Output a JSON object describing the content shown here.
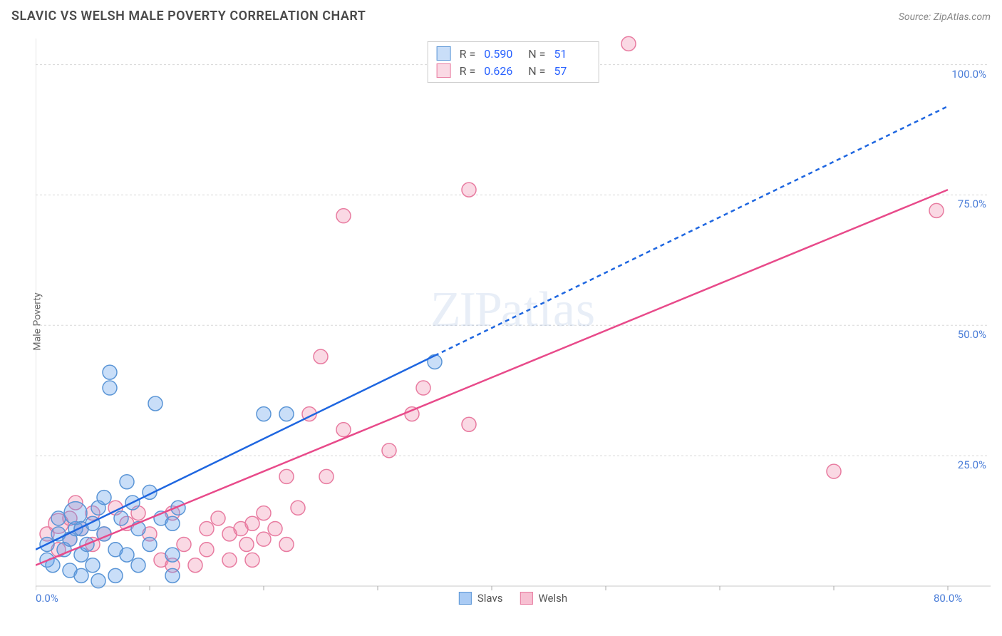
{
  "title": "SLAVIC VS WELSH MALE POVERTY CORRELATION CHART",
  "source_label": "Source: ZipAtlas.com",
  "watermark": {
    "bold": "ZIP",
    "light": "atlas"
  },
  "y_axis_label": "Male Poverty",
  "chart": {
    "type": "scatter",
    "background_color": "#ffffff",
    "grid_color": "#d8d8d8",
    "axis_color": "#c8c8c8",
    "tick_color": "#aaaaaa",
    "label_text_color": "#4a7dd8",
    "x_domain": [
      0,
      80
    ],
    "y_domain": [
      0,
      105
    ],
    "x_ticks": [
      0,
      10,
      20,
      30,
      40,
      50,
      60,
      70,
      80
    ],
    "y_gridlines": [
      25,
      50,
      75,
      100
    ],
    "x_tick_labels": {
      "0": "0.0%",
      "80": "80.0%"
    },
    "y_tick_labels": {
      "25": "25.0%",
      "50": "50.0%",
      "75": "75.0%",
      "100": "100.0%"
    },
    "series": [
      {
        "name": "Slavs",
        "marker_fill": "rgba(100,160,235,0.35)",
        "marker_stroke": "#5a95d6",
        "marker_radius": 10,
        "line_color": "#1e66e0",
        "line_width": 2.5,
        "dash_after_x": 35,
        "dash_pattern": "6,5",
        "r": "0.590",
        "n": "51",
        "trend": {
          "x1": 0,
          "y1": 7,
          "x2": 80,
          "y2": 92
        },
        "data": [
          {
            "x": 1,
            "y": 5
          },
          {
            "x": 1,
            "y": 8
          },
          {
            "x": 1.5,
            "y": 4
          },
          {
            "x": 2,
            "y": 10
          },
          {
            "x": 2,
            "y": 13
          },
          {
            "x": 2.5,
            "y": 7
          },
          {
            "x": 3,
            "y": 9
          },
          {
            "x": 3,
            "y": 3
          },
          {
            "x": 3.5,
            "y": 11
          },
          {
            "x": 3.5,
            "y": 14,
            "r": 16
          },
          {
            "x": 4,
            "y": 6
          },
          {
            "x": 4,
            "y": 2
          },
          {
            "x": 4,
            "y": 11
          },
          {
            "x": 4.5,
            "y": 8
          },
          {
            "x": 5,
            "y": 12
          },
          {
            "x": 5,
            "y": 4
          },
          {
            "x": 5.5,
            "y": 15
          },
          {
            "x": 5.5,
            "y": 1
          },
          {
            "x": 6,
            "y": 17
          },
          {
            "x": 6,
            "y": 10
          },
          {
            "x": 6.5,
            "y": 41
          },
          {
            "x": 6.5,
            "y": 38
          },
          {
            "x": 7,
            "y": 7
          },
          {
            "x": 7,
            "y": 2
          },
          {
            "x": 7.5,
            "y": 13
          },
          {
            "x": 8,
            "y": 20
          },
          {
            "x": 8,
            "y": 6
          },
          {
            "x": 8.5,
            "y": 16
          },
          {
            "x": 9,
            "y": 4
          },
          {
            "x": 9,
            "y": 11
          },
          {
            "x": 10,
            "y": 18
          },
          {
            "x": 10,
            "y": 8
          },
          {
            "x": 10.5,
            "y": 35
          },
          {
            "x": 11,
            "y": 13
          },
          {
            "x": 12,
            "y": 6
          },
          {
            "x": 12,
            "y": 12
          },
          {
            "x": 12,
            "y": 2
          },
          {
            "x": 12.5,
            "y": 15
          },
          {
            "x": 20,
            "y": 33
          },
          {
            "x": 22,
            "y": 33
          },
          {
            "x": 35,
            "y": 43
          }
        ]
      },
      {
        "name": "Welsh",
        "marker_fill": "rgba(240,130,165,0.3)",
        "marker_stroke": "#e87ba0",
        "marker_radius": 10,
        "line_color": "#e84a8a",
        "line_width": 2.5,
        "r": "0.626",
        "n": "57",
        "trend": {
          "x1": 0,
          "y1": 4,
          "x2": 80,
          "y2": 76
        },
        "data": [
          {
            "x": 1,
            "y": 10
          },
          {
            "x": 2,
            "y": 7
          },
          {
            "x": 2,
            "y": 12,
            "r": 14
          },
          {
            "x": 3,
            "y": 9
          },
          {
            "x": 3,
            "y": 13
          },
          {
            "x": 3.5,
            "y": 16
          },
          {
            "x": 4,
            "y": 11
          },
          {
            "x": 5,
            "y": 8
          },
          {
            "x": 5,
            "y": 14
          },
          {
            "x": 6,
            "y": 10
          },
          {
            "x": 7,
            "y": 15
          },
          {
            "x": 8,
            "y": 12
          },
          {
            "x": 9,
            "y": 14
          },
          {
            "x": 10,
            "y": 10
          },
          {
            "x": 11,
            "y": 5
          },
          {
            "x": 12,
            "y": 4
          },
          {
            "x": 12,
            "y": 14
          },
          {
            "x": 13,
            "y": 8
          },
          {
            "x": 14,
            "y": 4
          },
          {
            "x": 15,
            "y": 11
          },
          {
            "x": 15,
            "y": 7
          },
          {
            "x": 16,
            "y": 13
          },
          {
            "x": 17,
            "y": 10
          },
          {
            "x": 17,
            "y": 5
          },
          {
            "x": 18,
            "y": 11
          },
          {
            "x": 18.5,
            "y": 8
          },
          {
            "x": 19,
            "y": 12
          },
          {
            "x": 19,
            "y": 5
          },
          {
            "x": 20,
            "y": 14
          },
          {
            "x": 20,
            "y": 9
          },
          {
            "x": 21,
            "y": 11
          },
          {
            "x": 22,
            "y": 8
          },
          {
            "x": 22,
            "y": 21
          },
          {
            "x": 23,
            "y": 15
          },
          {
            "x": 24,
            "y": 33
          },
          {
            "x": 25,
            "y": 44
          },
          {
            "x": 25.5,
            "y": 21
          },
          {
            "x": 27,
            "y": 30
          },
          {
            "x": 27,
            "y": 71
          },
          {
            "x": 31,
            "y": 26
          },
          {
            "x": 33,
            "y": 33
          },
          {
            "x": 34,
            "y": 38
          },
          {
            "x": 38,
            "y": 76
          },
          {
            "x": 38,
            "y": 31
          },
          {
            "x": 52,
            "y": 104
          },
          {
            "x": 70,
            "y": 22
          },
          {
            "x": 79,
            "y": 72
          }
        ]
      }
    ],
    "legend_bottom": [
      {
        "label": "Slavs",
        "fill": "rgba(100,160,235,0.55)",
        "stroke": "#5a95d6"
      },
      {
        "label": "Welsh",
        "fill": "rgba(240,130,165,0.5)",
        "stroke": "#e87ba0"
      }
    ]
  }
}
